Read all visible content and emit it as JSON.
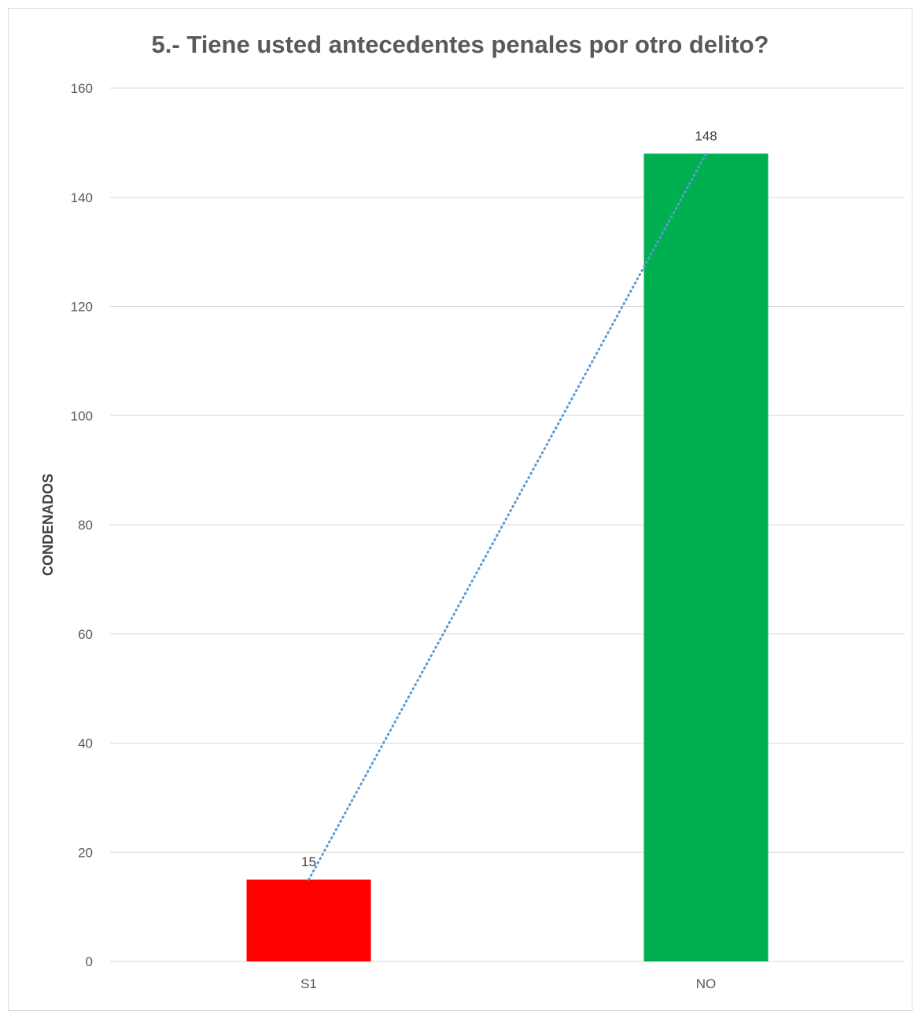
{
  "chart_data": {
    "type": "bar",
    "title": "5.- Tiene usted antecedentes penales por otro delito?",
    "xlabel": "",
    "ylabel": "CONDENADOS",
    "categories": [
      "S1",
      "NO"
    ],
    "values": [
      15,
      148
    ],
    "data_labels": [
      "15",
      "148"
    ],
    "bar_colors": [
      "#ff0000",
      "#00b050"
    ],
    "ylim": [
      0,
      160
    ],
    "yticks": [
      0,
      20,
      40,
      60,
      80,
      100,
      120,
      140,
      160
    ],
    "gridlines": true,
    "gridline_color": "#d9d9d9",
    "legend": "none",
    "trendline": {
      "type": "linear",
      "style": "dotted",
      "color": "#5b9bd5"
    }
  }
}
